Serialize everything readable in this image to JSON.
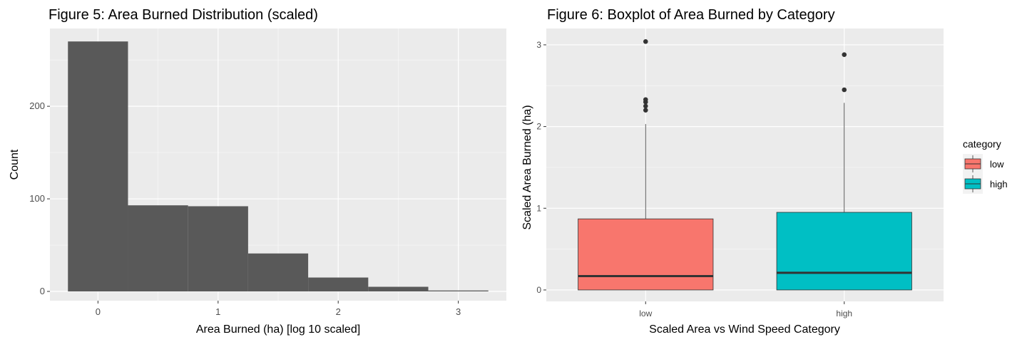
{
  "chart_data": [
    {
      "type": "bar",
      "subtype": "histogram",
      "title": "Figure 5: Area Burned Distribution (scaled)",
      "xlabel": "Area Burned (ha) [log 10 scaled]",
      "ylabel": "Count",
      "bin_width": 0.5,
      "bin_centers": [
        0,
        0.5,
        1,
        1.5,
        2,
        2.5,
        3
      ],
      "values": [
        270,
        93,
        92,
        41,
        15,
        5,
        1
      ],
      "xlim": [
        -0.4,
        3.4
      ],
      "ylim": [
        -10,
        284
      ],
      "x_ticks": [
        "0",
        "1",
        "2",
        "3"
      ],
      "y_ticks": [
        "0",
        "100",
        "200"
      ],
      "bar_color": "#595959",
      "panel_bg": "#ebebeb",
      "grid": true
    },
    {
      "type": "boxplot",
      "title": "Figure 6: Boxplot of Area Burned by Category",
      "xlabel": "Scaled Area vs Wind Speed Category",
      "ylabel": "Scaled Area Burned (ha)",
      "categories": [
        "low",
        "high"
      ],
      "ylim": [
        -0.14,
        3.2
      ],
      "y_ticks": [
        "0",
        "1",
        "2",
        "3"
      ],
      "series": [
        {
          "name": "low",
          "color": "#F8766D",
          "min": 0,
          "q1": 0,
          "median": 0.17,
          "q3": 0.87,
          "whisker_high": 2.03,
          "outliers": [
            2.2,
            2.25,
            2.3,
            2.33,
            3.04
          ]
        },
        {
          "name": "high",
          "color": "#00BFC4",
          "min": 0,
          "q1": 0,
          "median": 0.21,
          "q3": 0.95,
          "whisker_high": 2.29,
          "outliers": [
            2.45,
            2.88
          ]
        }
      ],
      "legend": {
        "title": "category",
        "items": [
          "low",
          "high"
        ],
        "position": "right"
      },
      "panel_bg": "#ebebeb",
      "grid": true
    }
  ]
}
